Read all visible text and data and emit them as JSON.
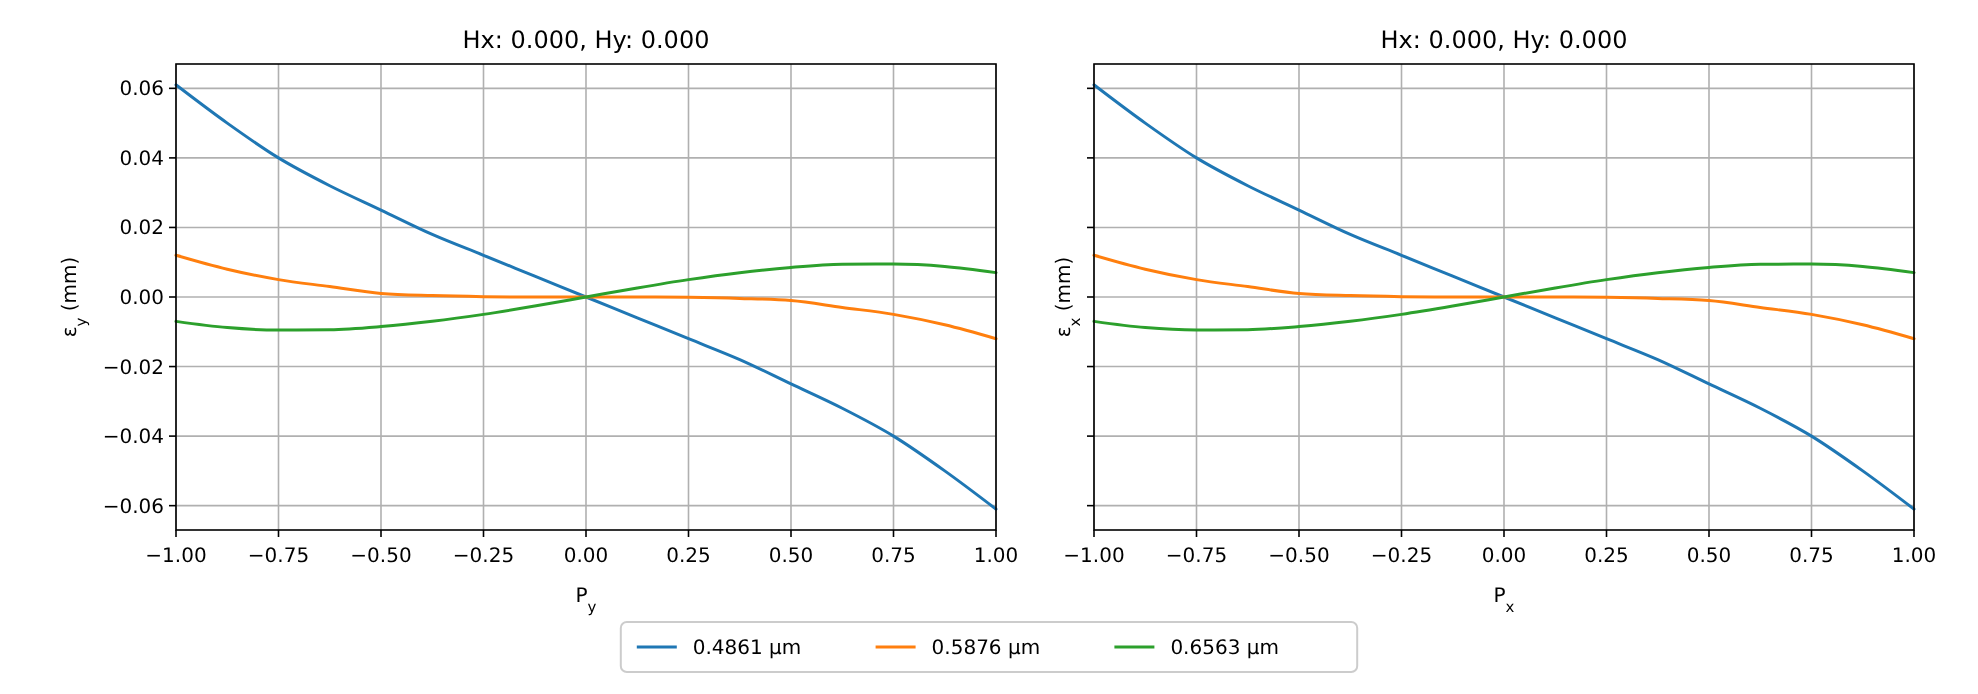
{
  "chart_data": [
    {
      "type": "line",
      "title": "Hx: 0.000, Hy: 0.000",
      "xlabel": "P$_{y}$",
      "ylabel": "ε$_{y}$ (mm)",
      "x": [
        -1,
        -0.875,
        -0.75,
        -0.625,
        -0.5,
        -0.375,
        -0.25,
        -0.125,
        0,
        0.125,
        0.25,
        0.375,
        0.5,
        0.625,
        0.75,
        0.875,
        1
      ],
      "xlim": [
        -1,
        1
      ],
      "xticks": [
        {
          "value": -1,
          "label": "−1.00"
        },
        {
          "value": -0.75,
          "label": "−0.75"
        },
        {
          "value": -0.5,
          "label": "−0.50"
        },
        {
          "value": -0.25,
          "label": "−0.25"
        },
        {
          "value": 0,
          "label": "0.00"
        },
        {
          "value": 0.25,
          "label": "0.25"
        },
        {
          "value": 0.5,
          "label": "0.50"
        },
        {
          "value": 0.75,
          "label": "0.75"
        },
        {
          "value": 1,
          "label": "1.00"
        }
      ],
      "ylim": [
        -0.067,
        0.067
      ],
      "yticks": [
        {
          "value": -0.06,
          "label": "−0.06"
        },
        {
          "value": -0.04,
          "label": "−0.04"
        },
        {
          "value": -0.02,
          "label": "−0.02"
        },
        {
          "value": 0,
          "label": "0.00"
        },
        {
          "value": 0.02,
          "label": "0.02"
        },
        {
          "value": 0.04,
          "label": "0.04"
        },
        {
          "value": 0.06,
          "label": "0.06"
        }
      ],
      "grid": true,
      "legend": "bottom",
      "series": [
        {
          "name": "0.4861 µm",
          "color": "#1f77b4",
          "values": [
            0.061,
            0.05,
            0.04,
            0.032,
            0.025,
            0.018,
            0.012,
            0.006,
            0,
            -0.006,
            -0.012,
            -0.018,
            -0.025,
            -0.032,
            -0.04,
            -0.05,
            -0.061
          ]
        },
        {
          "name": "0.5876 µm",
          "color": "#ff7f0e",
          "values": [
            0.012,
            0.008,
            0.005,
            0.003,
            0.001,
            0.0004,
            0.0001,
            0,
            0,
            0,
            -0.0001,
            -0.0004,
            -0.001,
            -0.003,
            -0.005,
            -0.008,
            -0.012
          ]
        },
        {
          "name": "0.6563 µm",
          "color": "#2ca02c",
          "values": [
            -0.007,
            -0.0088,
            -0.0095,
            -0.0094,
            -0.0085,
            -0.007,
            -0.005,
            -0.0026,
            0,
            0.0026,
            0.005,
            0.007,
            0.0085,
            0.0094,
            0.0095,
            0.0088,
            0.007
          ]
        }
      ]
    },
    {
      "type": "line",
      "title": "Hx: 0.000, Hy: 0.000",
      "xlabel": "P$_{x}$",
      "ylabel": "ε$_{x}$ (mm)",
      "x": [
        -1,
        -0.875,
        -0.75,
        -0.625,
        -0.5,
        -0.375,
        -0.25,
        -0.125,
        0,
        0.125,
        0.25,
        0.375,
        0.5,
        0.625,
        0.75,
        0.875,
        1
      ],
      "xlim": [
        -1,
        1
      ],
      "xticks": [
        {
          "value": -1,
          "label": "−1.00"
        },
        {
          "value": -0.75,
          "label": "−0.75"
        },
        {
          "value": -0.5,
          "label": "−0.50"
        },
        {
          "value": -0.25,
          "label": "−0.25"
        },
        {
          "value": 0,
          "label": "0.00"
        },
        {
          "value": 0.25,
          "label": "0.25"
        },
        {
          "value": 0.5,
          "label": "0.50"
        },
        {
          "value": 0.75,
          "label": "0.75"
        },
        {
          "value": 1,
          "label": "1.00"
        }
      ],
      "ylim": [
        -0.067,
        0.067
      ],
      "yticks": [
        {
          "value": -0.06,
          "label": null
        },
        {
          "value": -0.04,
          "label": null
        },
        {
          "value": -0.02,
          "label": null
        },
        {
          "value": 0,
          "label": null
        },
        {
          "value": 0.02,
          "label": null
        },
        {
          "value": 0.04,
          "label": null
        },
        {
          "value": 0.06,
          "label": null
        }
      ],
      "tick_labels": "x",
      "grid": true,
      "legend": "bottom",
      "series": [
        {
          "name": "0.4861 µm",
          "color": "#1f77b4",
          "values": [
            0.061,
            0.05,
            0.04,
            0.032,
            0.025,
            0.018,
            0.012,
            0.006,
            0,
            -0.006,
            -0.012,
            -0.018,
            -0.025,
            -0.032,
            -0.04,
            -0.05,
            -0.061
          ]
        },
        {
          "name": "0.5876 µm",
          "color": "#ff7f0e",
          "values": [
            0.012,
            0.008,
            0.005,
            0.003,
            0.001,
            0.0004,
            0.0001,
            0,
            0,
            0,
            -0.0001,
            -0.0004,
            -0.001,
            -0.003,
            -0.005,
            -0.008,
            -0.012
          ]
        },
        {
          "name": "0.6563 µm",
          "color": "#2ca02c",
          "values": [
            -0.007,
            -0.0088,
            -0.0095,
            -0.0094,
            -0.0085,
            -0.007,
            -0.005,
            -0.0026,
            0,
            0.0026,
            0.005,
            0.007,
            0.0085,
            0.0094,
            0.0095,
            0.0088,
            0.007
          ]
        }
      ]
    }
  ]
}
